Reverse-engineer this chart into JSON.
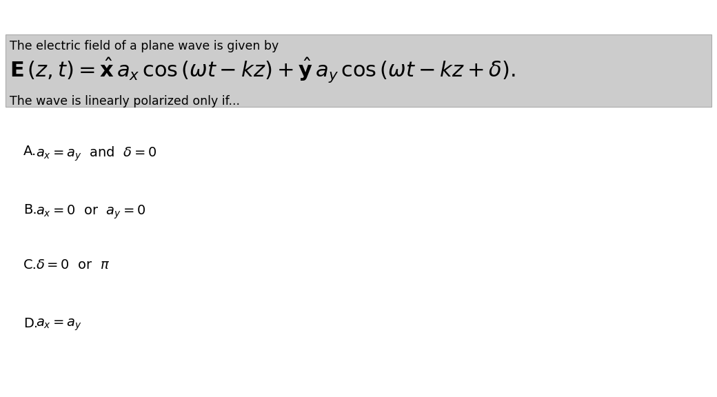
{
  "background_color": "#ffffff",
  "header_bg_color": "#cccccc",
  "header_line1": "The electric field of a plane wave is given by",
  "header_line2_latex": "$\\mathbf{E}\\,(z,t) = \\hat{\\mathbf{x}}\\, a_x\\, \\cos\\left(\\omega t - kz\\right) + \\hat{\\mathbf{y}}\\, a_y\\, \\cos\\left(\\omega t - kz + \\delta\\right).$",
  "header_line3": "The wave is linearly polarized only if...",
  "option_A_label": "A.",
  "option_A_math": "$a_x = a_y$  and  $\\delta = 0$",
  "option_B_label": "B.",
  "option_B_math": "$a_x = 0$  or  $a_y = 0$",
  "option_C_label": "C.",
  "option_C_math": "$\\delta = 0$  or  $\\pi$",
  "option_D_label": "D.",
  "option_D_math": "$a_x = a_y$",
  "font_size_header_text": 12.5,
  "font_size_eq": 22,
  "font_size_options": 14,
  "fig_width": 10.4,
  "fig_height": 5.76,
  "dpi": 100
}
